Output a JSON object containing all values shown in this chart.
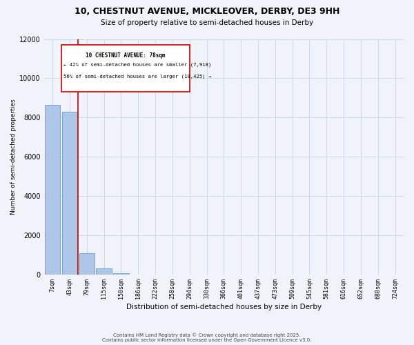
{
  "title_line1": "10, CHESTNUT AVENUE, MICKLEOVER, DERBY, DE3 9HH",
  "title_line2": "Size of property relative to semi-detached houses in Derby",
  "xlabel": "Distribution of semi-detached houses by size in Derby",
  "ylabel": "Number of semi-detached properties",
  "categories": [
    "7sqm",
    "43sqm",
    "79sqm",
    "115sqm",
    "150sqm",
    "186sqm",
    "222sqm",
    "258sqm",
    "294sqm",
    "330sqm",
    "366sqm",
    "401sqm",
    "437sqm",
    "473sqm",
    "509sqm",
    "545sqm",
    "581sqm",
    "616sqm",
    "652sqm",
    "688sqm",
    "724sqm"
  ],
  "values": [
    8650,
    8300,
    1100,
    330,
    60,
    0,
    0,
    0,
    0,
    0,
    0,
    0,
    0,
    0,
    0,
    0,
    0,
    0,
    0,
    0,
    0
  ],
  "bar_color": "#aec6e8",
  "bar_edge_color": "#5a9fd4",
  "property_line_index": 1.5,
  "annotation_text_line1": "10 CHESTNUT AVENUE: 78sqm",
  "annotation_text_line2": "← 42% of semi-detached houses are smaller (7,918)",
  "annotation_text_line3": "56% of semi-detached houses are larger (10,425) →",
  "ylim": [
    0,
    12000
  ],
  "yticks": [
    0,
    2000,
    4000,
    6000,
    8000,
    10000,
    12000
  ],
  "grid_color": "#d0d8e8",
  "background_color": "#f0f4fa",
  "footer_line1": "Contains HM Land Registry data © Crown copyright and database right 2025.",
  "footer_line2": "Contains public sector information licensed under the Open Government Licence v3.0.",
  "red_line_color": "#cc0000",
  "annotation_box_color": "#cc0000",
  "title_fontsize": 9,
  "subtitle_fontsize": 7.5,
  "ylabel_fontsize": 6.5,
  "xlabel_fontsize": 7.5,
  "tick_fontsize": 6,
  "footer_fontsize": 5,
  "ann_fontsize_title": 5.5,
  "ann_fontsize_body": 5.2
}
